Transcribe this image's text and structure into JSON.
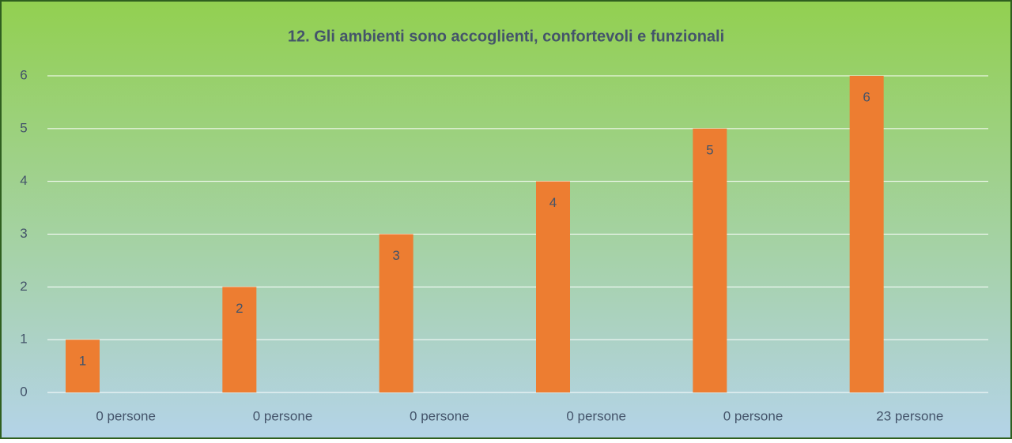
{
  "chart_data": {
    "type": "bar",
    "title": "12. Gli ambienti sono accoglienti, confortevoli e funzionali",
    "categories": [
      "0 persone",
      "0 persone",
      "0 persone",
      "0 persone",
      "0 persone",
      "23 persone"
    ],
    "values": [
      1,
      2,
      3,
      4,
      5,
      6
    ],
    "color": "#ed7d31",
    "ylim": [
      0,
      6
    ],
    "yticks": [
      0,
      1,
      2,
      3,
      4,
      5,
      6
    ],
    "grid": true
  }
}
